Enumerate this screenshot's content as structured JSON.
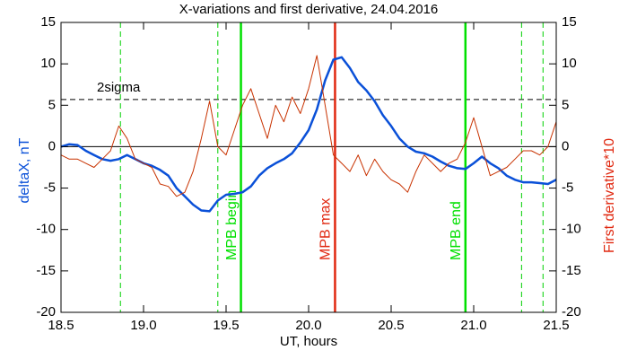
{
  "chart_data": {
    "type": "line",
    "title": "X-variations and first derivative, 24.04.2016",
    "x_label": "UT, hours",
    "y_label": "deltaX, nT",
    "y2_label": "First derivative*10",
    "xlim": [
      18.5,
      21.5
    ],
    "xticks": [
      18.5,
      {
        "value": 19,
        "label": "19.0"
      },
      19.5,
      {
        "value": 20,
        "label": "20.0"
      },
      20.5,
      {
        "value": 21,
        "label": "21.0"
      },
      21.5
    ],
    "ylim": [
      -20,
      15
    ],
    "yticks": [
      -20,
      -15,
      -10,
      -5,
      0,
      5,
      10,
      15
    ],
    "y2lim": [
      -20,
      15
    ],
    "y2ticks": [
      -20,
      -15,
      -10,
      -5,
      0,
      5,
      10,
      15
    ],
    "x": [
      18.5,
      18.55,
      18.6,
      18.65,
      18.7,
      18.75,
      18.8,
      18.85,
      18.9,
      18.95,
      19.0,
      19.05,
      19.1,
      19.15,
      19.2,
      19.25,
      19.3,
      19.35,
      19.4,
      19.45,
      19.5,
      19.55,
      19.6,
      19.65,
      19.7,
      19.75,
      19.8,
      19.85,
      19.9,
      19.95,
      20.0,
      20.05,
      20.1,
      20.15,
      20.2,
      20.25,
      20.3,
      20.35,
      20.4,
      20.45,
      20.5,
      20.55,
      20.6,
      20.65,
      20.7,
      20.75,
      20.8,
      20.85,
      20.9,
      20.95,
      21.0,
      21.05,
      21.1,
      21.15,
      21.2,
      21.25,
      21.3,
      21.35,
      21.4,
      21.45,
      21.5
    ],
    "series": [
      {
        "name": "deltaX",
        "color": "#0a50d8",
        "width": 2.5,
        "values": [
          0,
          0.3,
          0.2,
          -0.5,
          -1.0,
          -1.5,
          -1.7,
          -1.5,
          -1.0,
          -1.5,
          -2.0,
          -2.3,
          -2.8,
          -3.5,
          -5.0,
          -6.0,
          -7.0,
          -7.7,
          -7.8,
          -6.5,
          -5.8,
          -5.7,
          -5.5,
          -4.8,
          -3.5,
          -2.6,
          -2.0,
          -1.5,
          -0.8,
          0.5,
          2.0,
          4.5,
          8.0,
          10.5,
          10.8,
          9.5,
          7.8,
          6.8,
          5.5,
          3.8,
          2.5,
          1.0,
          0,
          -0.6,
          -0.8,
          -1.2,
          -1.8,
          -2.3,
          -2.6,
          -2.7,
          -2.0,
          -1.2,
          -2.0,
          -2.6,
          -3.5,
          -4.0,
          -4.3,
          -4.3,
          -4.4,
          -4.5,
          -4.0
        ]
      },
      {
        "name": "First derivative*10",
        "color": "#c83200",
        "width": 1,
        "axis": "y2",
        "values": [
          -1,
          -1.5,
          -1.5,
          -2,
          -2.5,
          -1.5,
          -0.5,
          2.5,
          1,
          -1.5,
          -2,
          -2.5,
          -4.5,
          -4.8,
          -6,
          -5.5,
          -3,
          1,
          5.5,
          0,
          -1,
          2,
          5,
          7,
          4,
          1,
          5,
          3,
          6,
          4,
          7,
          11,
          5,
          -1,
          -2,
          -3,
          -1,
          -3.5,
          -1.5,
          -3,
          -4,
          -4.5,
          -5.5,
          -3,
          -1,
          -2,
          -3,
          -2,
          -1.5,
          0.5,
          3.5,
          0,
          -3.5,
          -3,
          -2.5,
          -1.5,
          -0.5,
          -0.5,
          -1,
          0,
          3
        ]
      }
    ],
    "hlines": [
      {
        "y": 0,
        "color": "#000000",
        "style": "solid"
      },
      {
        "y": 5.7,
        "color": "#000000",
        "style": "dashed",
        "label": "2sigma"
      }
    ],
    "vlines": [
      {
        "x": 18.86,
        "color": "#00d000",
        "style": "dashed"
      },
      {
        "x": 19.45,
        "color": "#00d000",
        "style": "dashed"
      },
      {
        "x": 19.59,
        "color": "#00e000",
        "style": "solid",
        "label": "MPB begin"
      },
      {
        "x": 20.16,
        "color": "#e02810",
        "style": "solid",
        "label": "MPB max"
      },
      {
        "x": 20.95,
        "color": "#00e000",
        "style": "solid",
        "label": "MPB end"
      },
      {
        "x": 21.29,
        "color": "#00d000",
        "style": "dashed"
      },
      {
        "x": 21.42,
        "color": "#00d000",
        "style": "dashed"
      }
    ]
  }
}
